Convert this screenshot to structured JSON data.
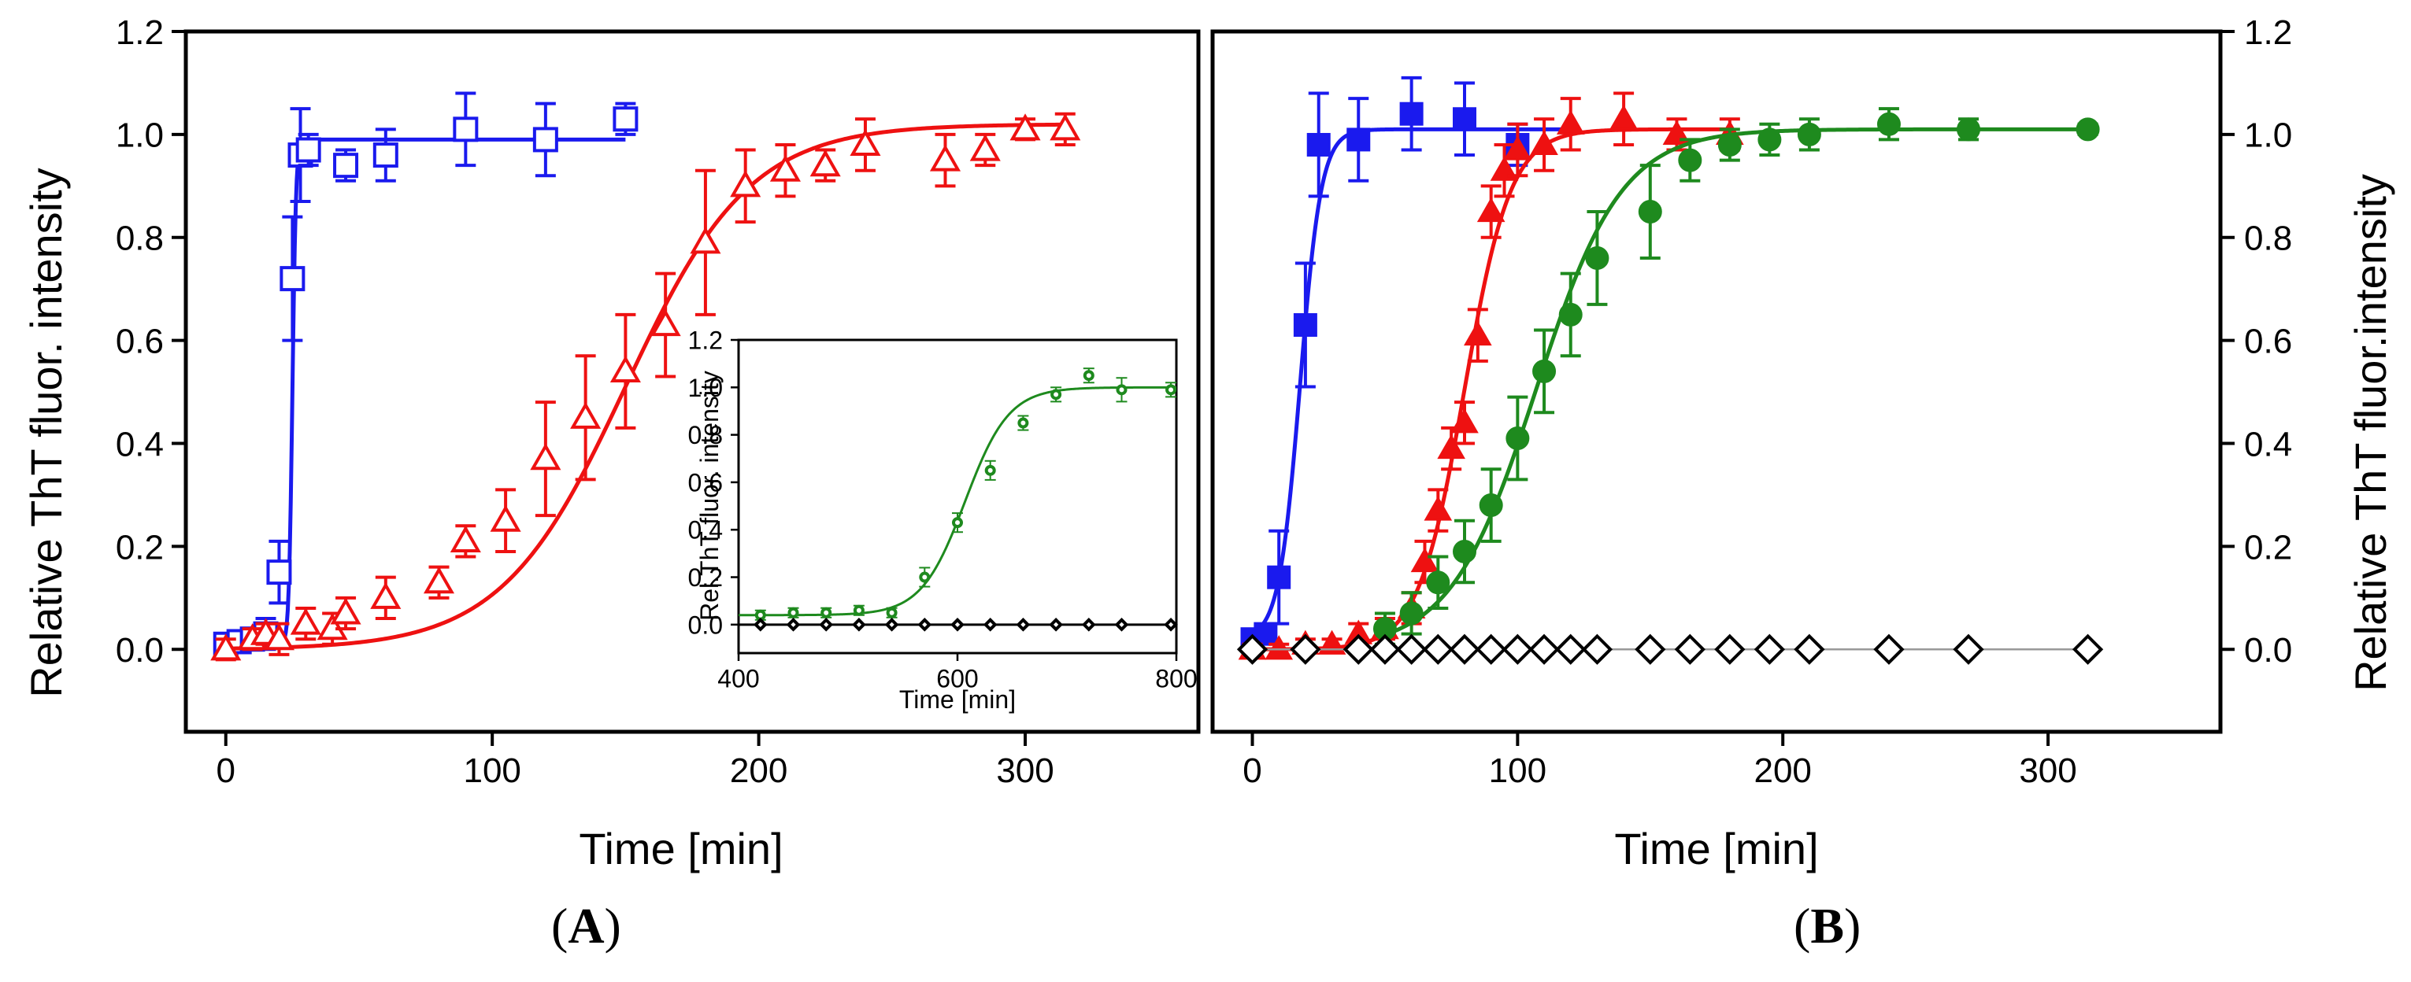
{
  "panels": {
    "a_label_open": "(",
    "a_label_letter": "A",
    "a_label_close": ")",
    "b_label_open": "(",
    "b_label_letter": "B",
    "b_label_close": ")"
  },
  "colors": {
    "blue": "#1a1aee",
    "red": "#ee1111",
    "green": "#1e8a1e",
    "black": "#000000",
    "grey": "#999999"
  },
  "chart_data": [
    {
      "id": "A",
      "type": "scatter",
      "xlabel": "Time [min]",
      "ylabel": "Relative ThT fluor. intensity",
      "xlim": [
        -15,
        365
      ],
      "ylim": [
        -0.16,
        1.2
      ],
      "xticks": [
        "0",
        "100",
        "200",
        "300"
      ],
      "xtick_values": [
        0,
        100,
        200,
        300
      ],
      "yticks": [
        "0.0",
        "0.2",
        "0.4",
        "0.6",
        "0.8",
        "1.0",
        "1.2"
      ],
      "ytick_values": [
        0,
        0.2,
        0.4,
        0.6,
        0.8,
        1.0,
        1.2
      ],
      "series": [
        {
          "name": "blue squares",
          "marker": "square",
          "filled": false,
          "color": "#1a1aee",
          "x": [
            0,
            5,
            10,
            15,
            20,
            25,
            28,
            31,
            45,
            60,
            90,
            120,
            150
          ],
          "y": [
            0.01,
            0.015,
            0.02,
            0.03,
            0.15,
            0.72,
            0.96,
            0.97,
            0.94,
            0.96,
            1.01,
            0.99,
            1.03
          ],
          "err": [
            0.01,
            0.01,
            0.02,
            0.03,
            0.06,
            0.12,
            0.09,
            0.03,
            0.03,
            0.05,
            0.07,
            0.07,
            0.03
          ],
          "fit": {
            "bottom": 0.01,
            "top": 0.99,
            "x0": 25,
            "k": 1.5,
            "xmax": 150
          }
        },
        {
          "name": "red triangles",
          "marker": "triangle",
          "filled": false,
          "color": "#ee1111",
          "x": [
            0,
            10,
            15,
            20,
            30,
            40,
            45,
            60,
            80,
            90,
            105,
            120,
            135,
            150,
            165,
            180,
            195,
            210,
            225,
            240,
            270,
            285,
            300,
            315
          ],
          "y": [
            0.0,
            0.02,
            0.03,
            0.02,
            0.05,
            0.04,
            0.07,
            0.1,
            0.13,
            0.21,
            0.25,
            0.37,
            0.45,
            0.54,
            0.63,
            0.79,
            0.9,
            0.93,
            0.94,
            0.98,
            0.95,
            0.97,
            1.01,
            1.01
          ],
          "err": [
            0.02,
            0.02,
            0.02,
            0.03,
            0.03,
            0.03,
            0.03,
            0.04,
            0.03,
            0.03,
            0.06,
            0.11,
            0.12,
            0.11,
            0.1,
            0.14,
            0.07,
            0.05,
            0.03,
            0.05,
            0.05,
            0.03,
            0.02,
            0.03
          ],
          "fit": {
            "bottom": 0.0,
            "top": 1.02,
            "x0": 150,
            "k": 0.043,
            "xmax": 315
          }
        }
      ],
      "inset": {
        "xlabel": "Time [min]",
        "ylabel": "Rel.ThT fluor. intensity",
        "xlim": [
          400,
          800
        ],
        "ylim": [
          -0.12,
          1.2
        ],
        "xticks": [
          "400",
          "600",
          "800"
        ],
        "xtick_values": [
          400,
          600,
          800
        ],
        "yticks": [
          "0.0",
          "0.2",
          "0.4",
          "0.6",
          "0.8",
          "1.0",
          "1.2"
        ],
        "ytick_values": [
          0,
          0.2,
          0.4,
          0.6,
          0.8,
          1.0,
          1.2
        ],
        "series": [
          {
            "name": "green circles",
            "marker": "circle",
            "filled": false,
            "color": "#1e8a1e",
            "x": [
              420,
              450,
              480,
              510,
              540,
              570,
              600,
              630,
              660,
              690,
              720,
              750,
              795
            ],
            "y": [
              0.04,
              0.05,
              0.05,
              0.06,
              0.05,
              0.2,
              0.43,
              0.65,
              0.85,
              0.97,
              1.05,
              0.99,
              0.99
            ],
            "err": [
              0.02,
              0.02,
              0.02,
              0.02,
              0.02,
              0.04,
              0.04,
              0.04,
              0.03,
              0.03,
              0.03,
              0.05,
              0.03
            ],
            "fit": {
              "bottom": 0.04,
              "top": 1.0,
              "x0": 607,
              "k": 0.05,
              "xmin": 400,
              "xmax": 800
            }
          },
          {
            "name": "black diamonds",
            "marker": "diamond",
            "filled": false,
            "color": "#000000",
            "x": [
              420,
              450,
              480,
              510,
              540,
              570,
              600,
              630,
              660,
              690,
              720,
              750,
              795
            ],
            "y": [
              0,
              0,
              0,
              0,
              0,
              0,
              0,
              0,
              0,
              0,
              0,
              0,
              0
            ],
            "err": [],
            "line": {
              "y": 0.0,
              "xmin": 400,
              "xmax": 800
            }
          }
        ]
      }
    },
    {
      "id": "B",
      "type": "scatter",
      "xlabel": "Time [min]",
      "ylabel": "Relative ThT fluor.intensity",
      "xlim": [
        -15,
        365
      ],
      "ylim": [
        -0.16,
        1.2
      ],
      "xticks": [
        "0",
        "100",
        "200",
        "300"
      ],
      "xtick_values": [
        0,
        100,
        200,
        300
      ],
      "yticks": [
        "0.0",
        "0.2",
        "0.4",
        "0.6",
        "0.8",
        "1.0",
        "1.2"
      ],
      "ytick_values": [
        0,
        0.2,
        0.4,
        0.6,
        0.8,
        1.0,
        1.2
      ],
      "series": [
        {
          "name": "blue squares",
          "marker": "square",
          "filled": true,
          "color": "#1a1aee",
          "x": [
            0,
            5,
            10,
            20,
            25,
            40,
            60,
            80,
            100
          ],
          "y": [
            0.02,
            0.03,
            0.14,
            0.63,
            0.98,
            0.99,
            1.04,
            1.03,
            0.98
          ],
          "err": [
            0.01,
            0.01,
            0.09,
            0.12,
            0.1,
            0.08,
            0.07,
            0.07,
            0.04
          ],
          "fit": {
            "bottom": 0.02,
            "top": 1.01,
            "x0": 18,
            "k": 0.25,
            "xmax": 120
          }
        },
        {
          "name": "red triangles",
          "marker": "triangle",
          "filled": true,
          "color": "#ee1111",
          "x": [
            0,
            10,
            20,
            30,
            40,
            50,
            60,
            65,
            70,
            75,
            80,
            85,
            90,
            95,
            100,
            110,
            120,
            140,
            160,
            180
          ],
          "y": [
            0.0,
            0.0,
            0.01,
            0.01,
            0.03,
            0.04,
            0.08,
            0.17,
            0.27,
            0.39,
            0.44,
            0.61,
            0.85,
            0.93,
            0.97,
            0.98,
            1.02,
            1.03,
            1.0,
            1.0
          ],
          "err": [
            0.01,
            0.01,
            0.01,
            0.01,
            0.02,
            0.02,
            0.03,
            0.04,
            0.04,
            0.04,
            0.04,
            0.05,
            0.05,
            0.05,
            0.05,
            0.05,
            0.05,
            0.05,
            0.03,
            0.03
          ],
          "fit": {
            "bottom": 0.0,
            "top": 1.01,
            "x0": 80,
            "k": 0.115,
            "xmax": 180
          }
        },
        {
          "name": "green circles",
          "marker": "circle",
          "filled": true,
          "color": "#1e8a1e",
          "x": [
            50,
            60,
            70,
            80,
            90,
            100,
            110,
            120,
            130,
            150,
            165,
            180,
            195,
            210,
            240,
            270,
            315
          ],
          "y": [
            0.04,
            0.07,
            0.13,
            0.19,
            0.28,
            0.41,
            0.54,
            0.65,
            0.76,
            0.85,
            0.95,
            0.98,
            0.99,
            1.0,
            1.02,
            1.01,
            1.01
          ],
          "err": [
            0.03,
            0.04,
            0.05,
            0.06,
            0.07,
            0.08,
            0.08,
            0.08,
            0.09,
            0.09,
            0.04,
            0.03,
            0.03,
            0.03,
            0.03,
            0.02,
            0.01
          ],
          "fit": {
            "bottom": 0.0,
            "top": 1.01,
            "x0": 107,
            "k": 0.062,
            "xmax": 315
          }
        },
        {
          "name": "open diamonds",
          "marker": "diamond",
          "filled": false,
          "color": "#000000",
          "x": [
            0,
            20,
            40,
            50,
            60,
            70,
            80,
            90,
            100,
            110,
            120,
            130,
            150,
            165,
            180,
            195,
            210,
            240,
            270,
            315
          ],
          "y": [
            0,
            0,
            0,
            0,
            0,
            0,
            0,
            0,
            0,
            0,
            0,
            0,
            0,
            0,
            0,
            0,
            0,
            0,
            0,
            0
          ],
          "err": [],
          "line": {
            "y": 0.0,
            "xmin": 0,
            "xmax": 315,
            "color": "#999999"
          }
        }
      ]
    }
  ]
}
